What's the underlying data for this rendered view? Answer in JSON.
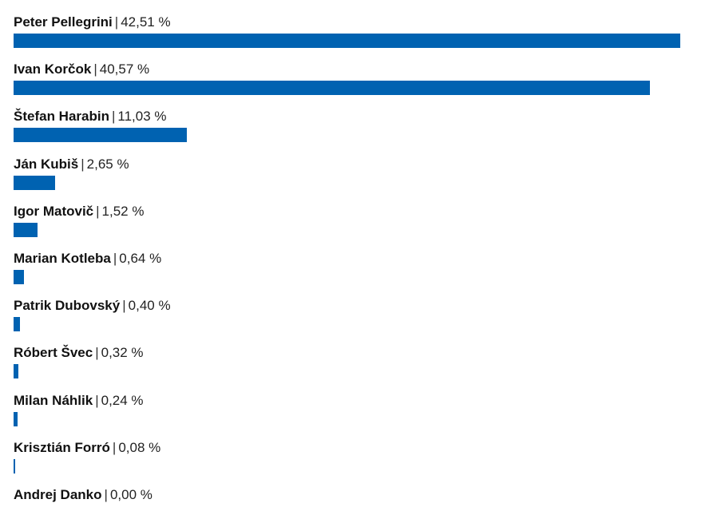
{
  "chart_data": {
    "type": "bar",
    "orientation": "horizontal",
    "categories": [
      "Peter Pellegrini",
      "Ivan Korčok",
      "Štefan Harabin",
      "Ján Kubiš",
      "Igor Matovič",
      "Marian Kotleba",
      "Patrik Dubovský",
      "Róbert Švec",
      "Milan Náhlik",
      "Krisztián Forró",
      "Andrej Danko"
    ],
    "values": [
      42.51,
      40.57,
      11.03,
      2.65,
      1.52,
      0.64,
      0.4,
      0.32,
      0.24,
      0.08,
      0.0
    ],
    "value_labels": [
      "42,51 %",
      "40,57 %",
      "11,03 %",
      "2,65 %",
      "1,52 %",
      "0,64 %",
      "0,40 %",
      "0,32 %",
      "0,24 %",
      "0,08 %",
      "0,00 %"
    ],
    "separator": "|",
    "bar_color": "#0062b1",
    "grid": false,
    "legend": false
  }
}
